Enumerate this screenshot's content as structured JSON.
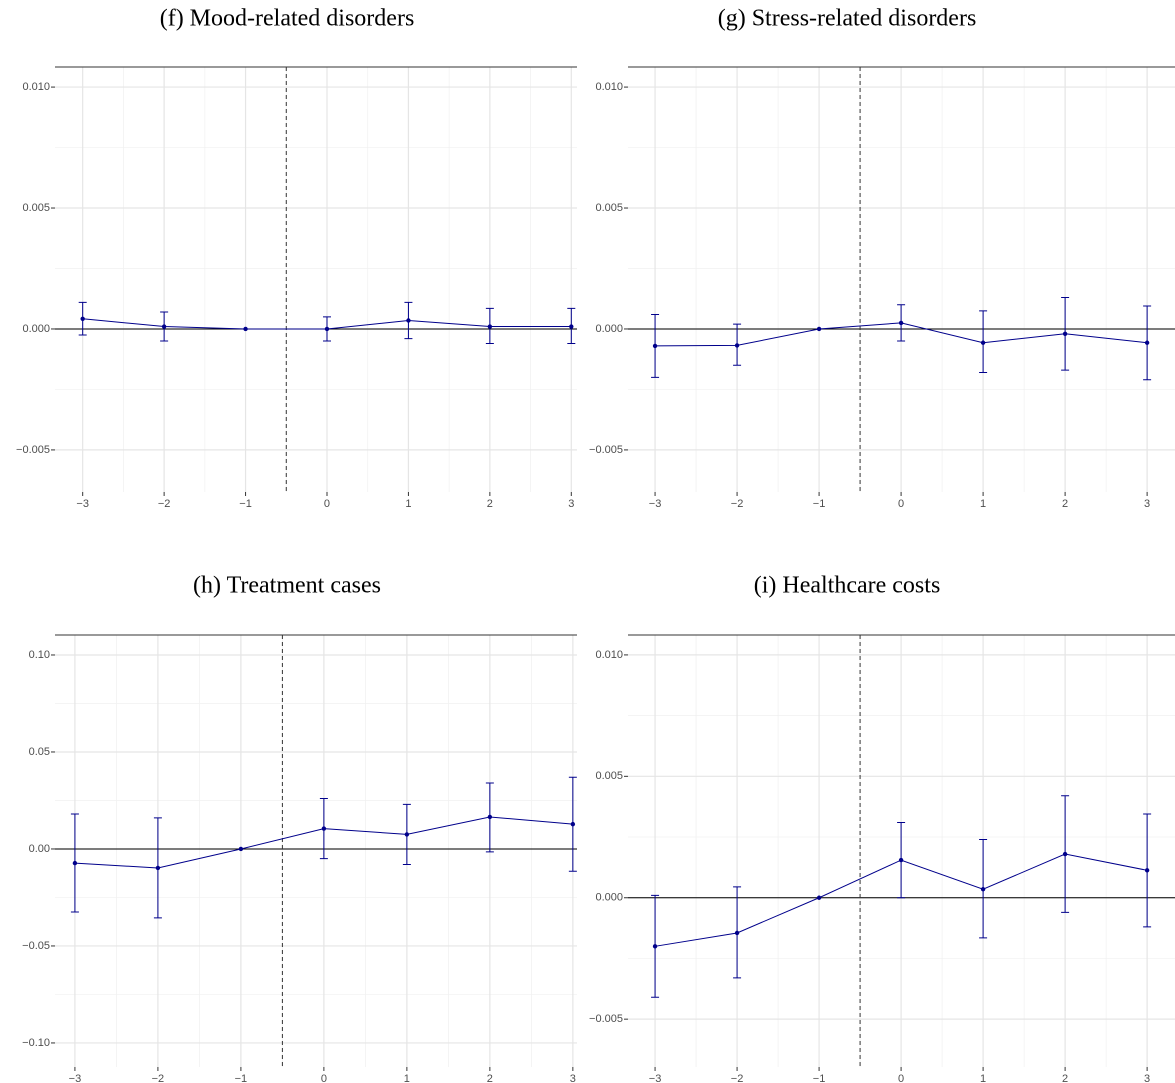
{
  "chart_data": [
    {
      "type": "line",
      "title": "(f) Mood-related disorders",
      "x": [
        -3,
        -2,
        -1,
        0,
        1,
        2,
        3
      ],
      "xlim": [
        -3.34,
        3.07
      ],
      "xticks": [
        {
          "value": -3,
          "label": "−3"
        },
        {
          "value": -2,
          "label": "−2"
        },
        {
          "value": -1,
          "label": "−1"
        },
        0,
        1,
        2,
        3
      ],
      "x_minor_ticks": [
        -2.5,
        -1.5,
        -0.5,
        0.5,
        1.5,
        2.5
      ],
      "ylim": [
        -0.00674,
        0.01083
      ],
      "yticks": [
        {
          "value": -0.005,
          "label": "−0.005"
        },
        {
          "value": 0,
          "label": "0.000"
        },
        {
          "value": 0.005,
          "label": "0.005"
        },
        {
          "value": 0.01,
          "label": "0.010"
        }
      ],
      "y_minor_ticks": [
        -0.0025,
        0.0025,
        0.0075
      ],
      "grid": true,
      "vline": -0.5,
      "hline": 0,
      "series": [
        {
          "color": "#00008b",
          "values": [
            0.00042,
            0.0001,
            0,
            0.0,
            0.00035,
            0.0001,
            0.0001
          ],
          "lower": [
            -0.00025,
            -0.0005,
            null,
            -0.0005,
            -0.0004,
            -0.0006,
            -0.0006
          ],
          "upper": [
            0.0011,
            0.0007,
            null,
            0.0005,
            0.0011,
            0.00085,
            0.00085
          ]
        }
      ]
    },
    {
      "type": "line",
      "title": "(g) Stress-related disorders",
      "x": [
        -3,
        -2,
        -1,
        0,
        1,
        2,
        3
      ],
      "xlim": [
        -3.33,
        3.34
      ],
      "xticks": [
        {
          "value": -3,
          "label": "−3"
        },
        {
          "value": -2,
          "label": "−2"
        },
        {
          "value": -1,
          "label": "−1"
        },
        0,
        1,
        2,
        3
      ],
      "x_minor_ticks": [
        -2.5,
        -1.5,
        -0.5,
        0.5,
        1.5,
        2.5
      ],
      "ylim": [
        -0.00674,
        0.01083
      ],
      "yticks": [
        {
          "value": -0.005,
          "label": "−0.005"
        },
        {
          "value": 0,
          "label": "0.000"
        },
        {
          "value": 0.005,
          "label": "0.005"
        },
        {
          "value": 0.01,
          "label": "0.010"
        }
      ],
      "y_minor_ticks": [
        -0.0025,
        0.0025,
        0.0075
      ],
      "grid": true,
      "vline": -0.5,
      "hline": 0,
      "series": [
        {
          "color": "#00008b",
          "values": [
            -0.0007,
            -0.00068,
            0,
            0.00025,
            -0.00057,
            -0.0002,
            -0.00057
          ],
          "lower": [
            -0.002,
            -0.0015,
            null,
            -0.0005,
            -0.0018,
            -0.0017,
            -0.0021
          ],
          "upper": [
            0.0006,
            0.0002,
            null,
            0.001,
            0.00075,
            0.0013,
            0.00095
          ]
        }
      ]
    },
    {
      "type": "line",
      "title": "(h) Treatment cases",
      "x": [
        -3,
        -2,
        -1,
        0,
        1,
        2,
        3
      ],
      "xlim": [
        -3.24,
        3.05
      ],
      "xticks": [
        {
          "value": -3,
          "label": "−3"
        },
        {
          "value": -2,
          "label": "−2"
        },
        {
          "value": -1,
          "label": "−1"
        },
        0,
        1,
        2,
        3
      ],
      "x_minor_ticks": [
        -2.5,
        -1.5,
        -0.5,
        0.5,
        1.5,
        2.5
      ],
      "ylim": [
        -0.1124,
        0.1103
      ],
      "yticks": [
        {
          "value": -0.1,
          "label": "−0.10"
        },
        {
          "value": -0.05,
          "label": "−0.05"
        },
        {
          "value": 0,
          "label": "0.00"
        },
        {
          "value": 0.05,
          "label": "0.05"
        },
        {
          "value": 0.1,
          "label": "0.10"
        }
      ],
      "y_minor_ticks": [
        -0.075,
        -0.025,
        0.025,
        0.075
      ],
      "grid": true,
      "vline": -0.5,
      "hline": 0,
      "series": [
        {
          "color": "#00008b",
          "values": [
            -0.0073,
            -0.0098,
            0,
            0.0105,
            0.0075,
            0.0165,
            0.0128
          ],
          "lower": [
            -0.0325,
            -0.0355,
            null,
            -0.005,
            -0.008,
            -0.0015,
            -0.0115
          ],
          "upper": [
            0.018,
            0.016,
            null,
            0.026,
            0.023,
            0.034,
            0.037
          ]
        }
      ]
    },
    {
      "type": "line",
      "title": "(i) Healthcare costs",
      "x": [
        -3,
        -2,
        -1,
        0,
        1,
        2,
        3
      ],
      "xlim": [
        -3.33,
        3.34
      ],
      "xticks": [
        {
          "value": -3,
          "label": "−3"
        },
        {
          "value": -2,
          "label": "−2"
        },
        {
          "value": -1,
          "label": "−1"
        },
        0,
        1,
        2,
        3
      ],
      "x_minor_ticks": [
        -2.5,
        -1.5,
        -0.5,
        0.5,
        1.5,
        2.5
      ],
      "ylim": [
        -0.00697,
        0.01082
      ],
      "yticks": [
        {
          "value": -0.005,
          "label": "−0.005"
        },
        {
          "value": 0,
          "label": "0.000"
        },
        {
          "value": 0.005,
          "label": "0.005"
        },
        {
          "value": 0.01,
          "label": "0.010"
        }
      ],
      "y_minor_ticks": [
        -0.0025,
        0.0025,
        0.0075
      ],
      "grid": true,
      "vline": -0.5,
      "hline": 0,
      "series": [
        {
          "color": "#00008b",
          "values": [
            -0.002,
            -0.00145,
            0,
            0.00155,
            0.00035,
            0.0018,
            0.00113
          ],
          "lower": [
            -0.0041,
            -0.0033,
            null,
            0.0,
            -0.00165,
            -0.0006,
            -0.0012
          ],
          "upper": [
            0.0001,
            0.00045,
            null,
            0.0031,
            0.0024,
            0.0042,
            0.00345
          ]
        }
      ]
    }
  ]
}
